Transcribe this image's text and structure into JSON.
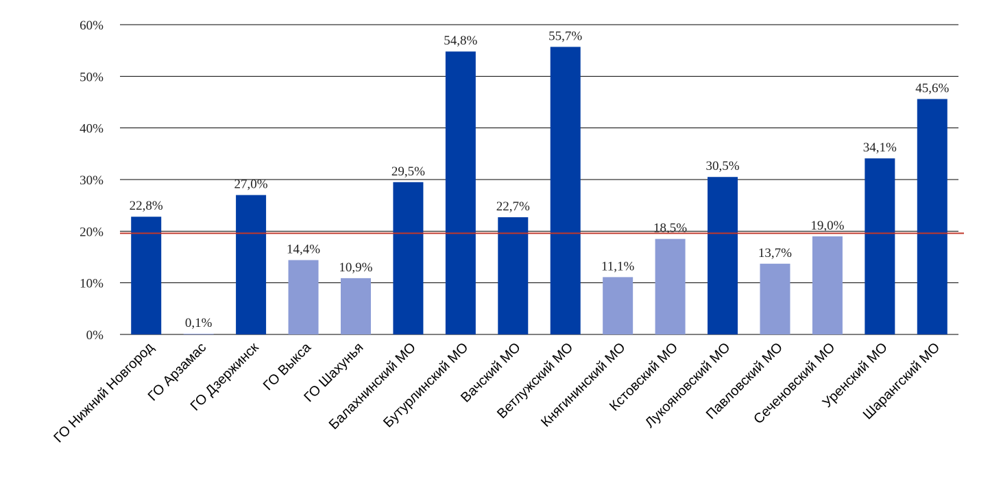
{
  "chart_data": {
    "type": "bar",
    "categories": [
      "ГО Нижний Новгород",
      "ГО Арзамас",
      "ГО Дзержинск",
      "ГО Выкса",
      "ГО Шахунья",
      "Балахнинский МО",
      "Бутурлинский МО",
      "Вачский МО",
      "Ветлужский МО",
      "Княгининский МО",
      "Кстовский МО",
      "Лукояновский МО",
      "Павловский МО",
      "Сеченовский МО",
      "Уренский МО",
      "Шарангский МО"
    ],
    "values": [
      22.8,
      0.1,
      27.0,
      14.4,
      10.9,
      29.5,
      54.8,
      22.7,
      55.7,
      11.1,
      18.5,
      30.5,
      13.7,
      19.0,
      34.1,
      45.6
    ],
    "data_labels": [
      "22,8%",
      "0,1%",
      "27,0%",
      "14,4%",
      "10,9%",
      "29,5%",
      "54,8%",
      "22,7%",
      "55,7%",
      "11,1%",
      "18,5%",
      "30,5%",
      "13,7%",
      "19,0%",
      "34,1%",
      "45,6%"
    ],
    "ylim": [
      0,
      60
    ],
    "yticks": [
      0,
      10,
      20,
      30,
      40,
      50,
      60
    ],
    "ytick_labels": [
      "0%",
      "10%",
      "20%",
      "30%",
      "40%",
      "50%",
      "60%"
    ],
    "reference_line": 19.6,
    "grid": true,
    "colors": {
      "above_reference": "#003da5",
      "below_reference": "#8b9bd6",
      "reference_line": "#c0392b"
    },
    "title": "",
    "xlabel": "",
    "ylabel": ""
  }
}
